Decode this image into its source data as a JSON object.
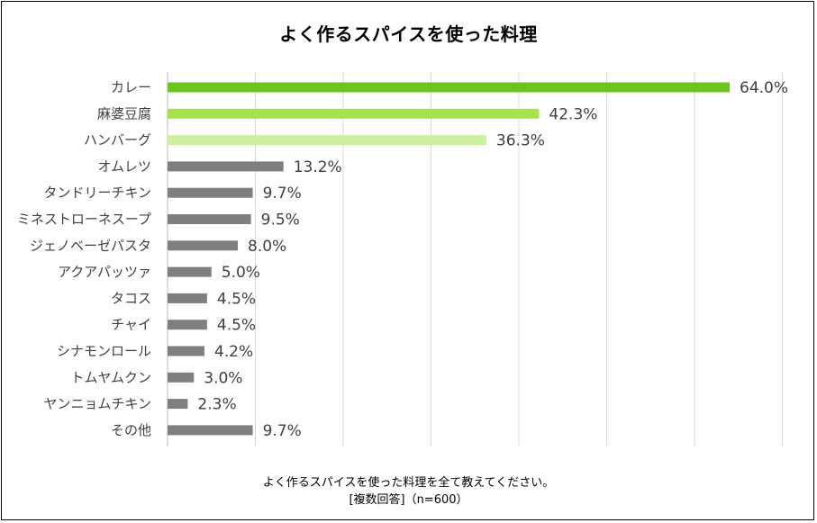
{
  "chart_data": {
    "type": "bar",
    "orientation": "horizontal",
    "title": "よく作るスパイスを使った料理",
    "categories": [
      "カレー",
      "麻婆豆腐",
      "ハンバーグ",
      "オムレツ",
      "タンドリーチキン",
      "ミネストローネスープ",
      "ジェノベーゼパスタ",
      "アクアパッツァ",
      "タコス",
      "チャイ",
      "シナモンロール",
      "トムヤムクン",
      "ヤンニョムチキン",
      "その他"
    ],
    "values": [
      64.0,
      42.3,
      36.3,
      13.2,
      9.7,
      9.5,
      8.0,
      5.0,
      4.5,
      4.5,
      4.2,
      3.0,
      2.3,
      9.7
    ],
    "value_labels": [
      "64.0%",
      "42.3%",
      "36.3%",
      "13.2%",
      "9.7%",
      "9.5%",
      "8.0%",
      "5.0%",
      "4.5%",
      "4.5%",
      "4.2%",
      "3.0%",
      "2.3%",
      "9.7%"
    ],
    "bar_colors": [
      "#6cc51c",
      "#a6e34a",
      "#cdf0a0",
      "#7f7f7f",
      "#7f7f7f",
      "#7f7f7f",
      "#7f7f7f",
      "#7f7f7f",
      "#7f7f7f",
      "#7f7f7f",
      "#7f7f7f",
      "#7f7f7f",
      "#7f7f7f",
      "#7f7f7f"
    ],
    "xlim": [
      0,
      70
    ],
    "grid": true,
    "unit": "%"
  },
  "footer": {
    "question": "よく作るスパイスを使った料理を全て教えてください。",
    "note": "[複数回答]（n=600）"
  }
}
